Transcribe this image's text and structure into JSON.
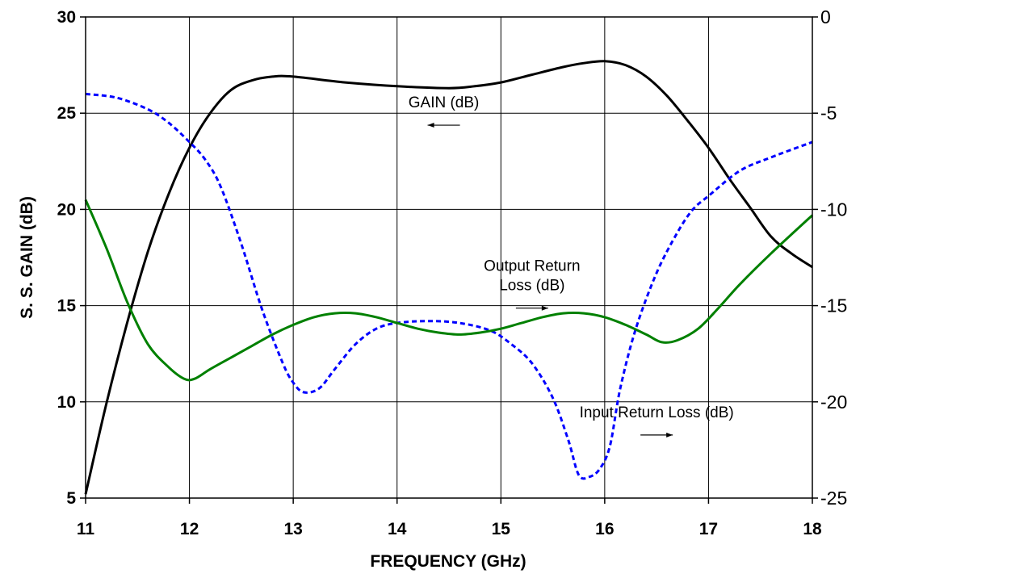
{
  "chart_data": {
    "type": "line",
    "xlabel": "FREQUENCY (GHz)",
    "ylabel": "S. S. GAIN (dB)",
    "xlim": [
      11,
      18
    ],
    "ylim": [
      5,
      30
    ],
    "y2lim": [
      -25,
      0
    ],
    "x_ticks": [
      "11",
      "12",
      "13",
      "14",
      "15",
      "16",
      "17",
      "18"
    ],
    "y_ticks": [
      "5",
      "10",
      "15",
      "20",
      "25",
      "30"
    ],
    "y2_ticks": [
      "-25",
      "-20",
      "-15",
      "-10",
      "-5",
      "0"
    ],
    "grid": true,
    "legend": "none",
    "series": [
      {
        "axis": "left",
        "color": "#000000",
        "dash": "solid",
        "x": [
          11.0,
          11.2,
          11.4,
          11.6,
          11.8,
          12.0,
          12.2,
          12.4,
          12.6,
          12.8,
          13.0,
          13.5,
          14.0,
          14.5,
          14.75,
          15.0,
          15.3,
          15.6,
          15.8,
          16.0,
          16.2,
          16.4,
          16.6,
          16.8,
          17.0,
          17.2,
          17.4,
          17.6,
          17.8,
          18.0
        ],
        "y": [
          5.2,
          9.9,
          14.1,
          17.8,
          20.8,
          23.2,
          25.0,
          26.2,
          26.7,
          26.9,
          26.9,
          26.6,
          26.4,
          26.3,
          26.4,
          26.6,
          27.0,
          27.4,
          27.6,
          27.7,
          27.5,
          26.9,
          25.9,
          24.6,
          23.2,
          21.6,
          20.1,
          18.6,
          17.7,
          17.0
        ]
      },
      {
        "axis": "right",
        "color": "#0000FF",
        "dash": "dashed",
        "x": [
          11.0,
          11.3,
          11.6,
          11.8,
          12.0,
          12.15,
          12.3,
          12.5,
          12.7,
          12.9,
          13.0,
          13.1,
          13.25,
          13.4,
          13.6,
          13.8,
          14.0,
          14.3,
          14.6,
          14.9,
          15.1,
          15.3,
          15.5,
          15.65,
          15.75,
          15.85,
          15.95,
          16.05,
          16.15,
          16.3,
          16.5,
          16.7,
          16.85,
          17.0,
          17.3,
          17.6,
          18.0
        ],
        "y": [
          -4.0,
          -4.2,
          -4.8,
          -5.5,
          -6.5,
          -7.4,
          -8.8,
          -11.8,
          -15.2,
          -18.0,
          -19.0,
          -19.5,
          -19.3,
          -18.3,
          -17.0,
          -16.2,
          -15.9,
          -15.8,
          -15.9,
          -16.3,
          -17.0,
          -18.0,
          -19.8,
          -22.0,
          -23.8,
          -23.9,
          -23.5,
          -22.3,
          -19.3,
          -16.2,
          -13.3,
          -11.2,
          -10.0,
          -9.3,
          -8.0,
          -7.3,
          -6.5
        ]
      },
      {
        "axis": "left",
        "color": "#008000",
        "dash": "solid",
        "x": [
          11.0,
          11.2,
          11.4,
          11.6,
          11.8,
          11.95,
          12.05,
          12.2,
          12.4,
          12.6,
          12.8,
          13.0,
          13.2,
          13.4,
          13.6,
          13.8,
          14.0,
          14.2,
          14.4,
          14.6,
          14.8,
          15.0,
          15.2,
          15.4,
          15.6,
          15.8,
          16.0,
          16.2,
          16.4,
          16.55,
          16.7,
          16.9,
          17.1,
          17.3,
          17.6,
          18.0
        ],
        "y": [
          20.5,
          18.0,
          15.2,
          13.0,
          11.8,
          11.2,
          11.2,
          11.7,
          12.3,
          12.9,
          13.5,
          14.0,
          14.4,
          14.6,
          14.6,
          14.4,
          14.1,
          13.8,
          13.6,
          13.5,
          13.6,
          13.8,
          14.1,
          14.4,
          14.6,
          14.6,
          14.4,
          14.0,
          13.5,
          13.1,
          13.2,
          13.8,
          14.9,
          16.1,
          17.7,
          19.7
        ]
      }
    ],
    "annotations": [
      {
        "label": "GAIN (dB)",
        "lines": [
          "GAIN (dB)"
        ],
        "at_x": 14.45,
        "at_y": 25.3,
        "arrow": "left"
      },
      {
        "label": "Output Return Loss (dB)",
        "lines": [
          "Output Return",
          "Loss (dB)"
        ],
        "at_x": 15.3,
        "at_y": 16.8,
        "arrow": "right"
      },
      {
        "label": "Input Return Loss (dB)",
        "lines": [
          "Input Return Loss (dB)"
        ],
        "at_x": 16.5,
        "at_y": 9.2,
        "arrow": "right"
      }
    ]
  }
}
